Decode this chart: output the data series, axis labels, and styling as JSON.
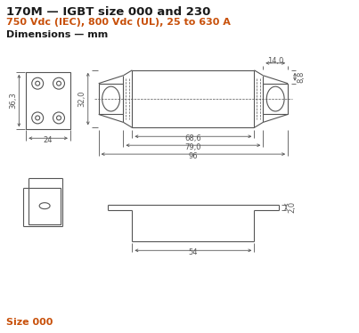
{
  "title": "170M — IGBT size 000 and 230",
  "subtitle": "750 Vdc (IEC), 800 Vdc (UL), 25 to 630 A",
  "dim_label": "Dimensions — mm",
  "size_label": "Size 000",
  "bg_color": "#ffffff",
  "line_color": "#555555",
  "text_color": "#1a1a1a",
  "orange_color": "#c8500a",
  "dim_color": "#555555",
  "title_fontsize": 9.5,
  "subtitle_fontsize": 8.0,
  "dim_label_fontsize": 8.0,
  "anno_fontsize": 6.0
}
